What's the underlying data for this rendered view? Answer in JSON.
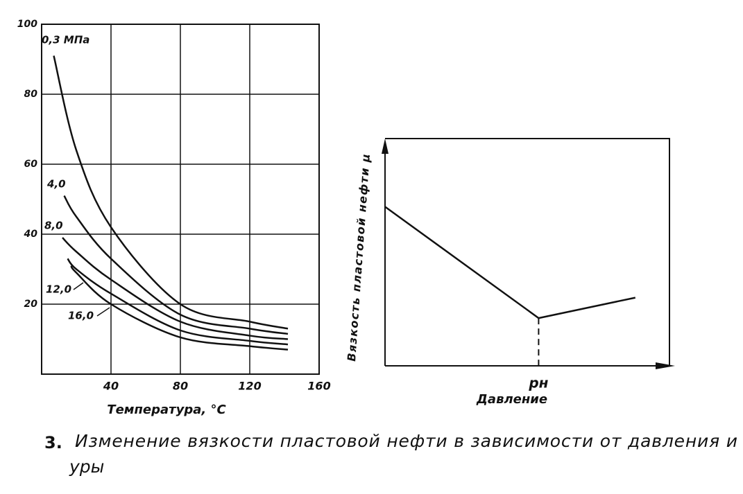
{
  "chart_data": [
    {
      "type": "line",
      "xlabel": "Температура, °С",
      "xlim": [
        0,
        160
      ],
      "ylim": [
        0,
        100
      ],
      "xticks": [
        40,
        80,
        120,
        160
      ],
      "yticks": [
        20,
        40,
        60,
        80,
        100
      ],
      "grid": true,
      "series": [
        {
          "name": "0,3 МПа",
          "color": "#111",
          "x": [
            7,
            20,
            40,
            80,
            120,
            142
          ],
          "values": [
            91,
            64,
            42,
            20,
            15,
            13
          ]
        },
        {
          "name": "4,0",
          "color": "#111",
          "x": [
            13,
            20,
            40,
            80,
            120,
            142
          ],
          "values": [
            51,
            45,
            33,
            17,
            13,
            11.5
          ]
        },
        {
          "name": "8,0",
          "color": "#111",
          "x": [
            12,
            20,
            40,
            80,
            120,
            142
          ],
          "values": [
            39,
            35,
            27,
            15,
            11,
            10
          ]
        },
        {
          "name": "12,0",
          "color": "#111",
          "x": [
            15,
            20,
            40,
            80,
            120,
            142
          ],
          "values": [
            33,
            30,
            23,
            12.5,
            9.5,
            8.5
          ]
        },
        {
          "name": "16,0",
          "color": "#111",
          "x": [
            17,
            20,
            40,
            80,
            120,
            142
          ],
          "values": [
            31,
            29,
            20,
            10.5,
            8,
            7
          ]
        }
      ]
    },
    {
      "type": "line",
      "xlabel": "Давление",
      "ylabel": "Вязкость пластовой нефти μ",
      "xlim": [
        0,
        100
      ],
      "ylim": [
        0,
        100
      ],
      "xticks": [
        {
          "value": 54,
          "label": "pн"
        }
      ],
      "series": [
        {
          "color": "#111",
          "x": [
            0,
            54,
            88
          ],
          "values": [
            70,
            21,
            30
          ]
        }
      ]
    }
  ],
  "caption": {
    "number": "3.",
    "line1": "Изменение вязкости пластовой нефти в зависимости от давления и",
    "line2": "уры"
  }
}
